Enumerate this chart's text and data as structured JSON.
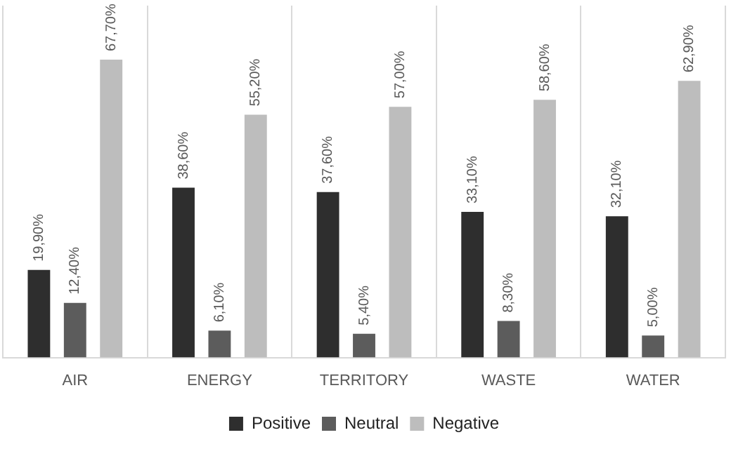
{
  "chart_data": {
    "type": "bar",
    "categories": [
      "AIR",
      "ENERGY",
      "TERRITORY",
      "WASTE",
      "WATER"
    ],
    "series": [
      {
        "name": "Positive",
        "color": "#2e2e2e",
        "values": [
          19.9,
          38.6,
          37.6,
          33.1,
          32.1
        ],
        "value_labels": [
          "19,90%",
          "38,60%",
          "37,60%",
          "33,10%",
          "32,10%"
        ]
      },
      {
        "name": "Neutral",
        "color": "#5c5c5c",
        "values": [
          12.4,
          6.1,
          5.4,
          8.3,
          5.0
        ],
        "value_labels": [
          "12,40%",
          "6,10%",
          "5,40%",
          "8,30%",
          "5,00%"
        ]
      },
      {
        "name": "Negative",
        "color": "#bdbdbd",
        "values": [
          67.7,
          55.2,
          57.0,
          58.6,
          62.9
        ],
        "value_labels": [
          "67,70%",
          "55,20%",
          "57,00%",
          "58,60%",
          "62,90%"
        ]
      }
    ],
    "grid": "x",
    "legend": "bottom",
    "tick_labels": "x"
  }
}
